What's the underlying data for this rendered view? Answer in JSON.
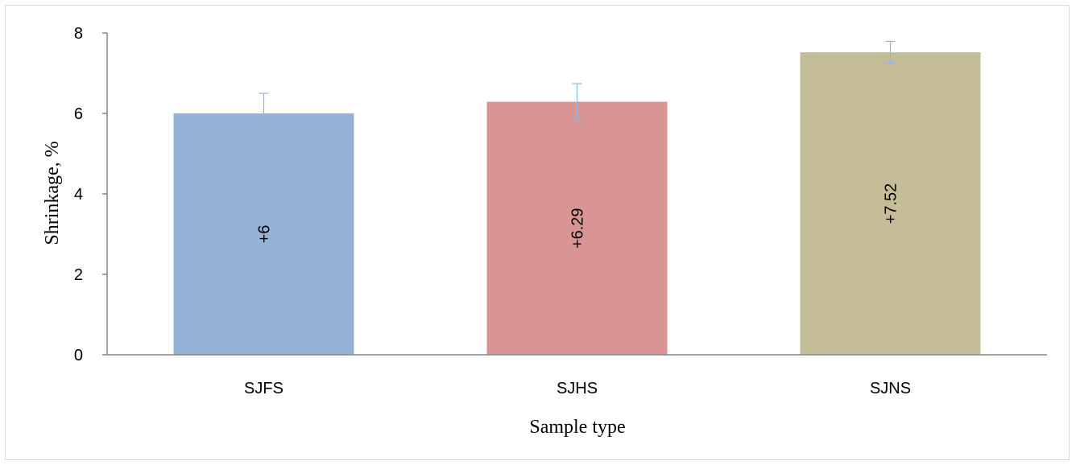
{
  "chart_data": {
    "type": "bar",
    "title": "",
    "xlabel": "Sample type",
    "ylabel": "Shrinkage, %",
    "categories": [
      "SJFS",
      "SJHS",
      "SJNS"
    ],
    "values": [
      6,
      6.29,
      7.52
    ],
    "error": [
      0.5,
      0.45,
      0.27
    ],
    "data_labels": [
      "+6",
      "+6.29",
      "+7.52"
    ],
    "colors": [
      "#95b3d7",
      "#d99594",
      "#c4bd97"
    ],
    "error_color": "#8eb4e3",
    "ylim": [
      0,
      8
    ],
    "yticks": [
      0,
      2,
      4,
      6,
      8
    ],
    "grid": false,
    "legend": "none"
  }
}
